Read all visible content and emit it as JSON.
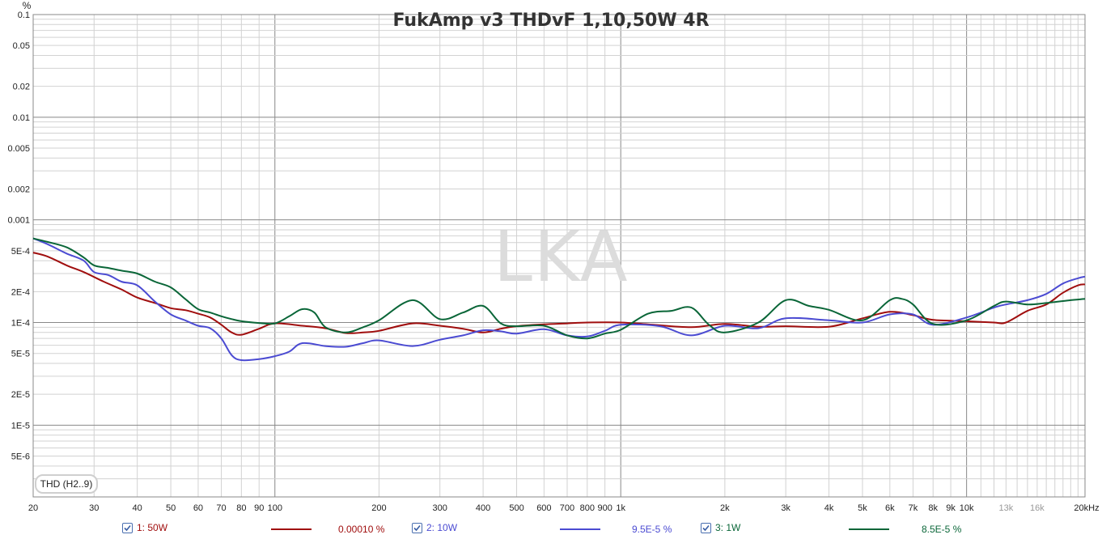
{
  "chart_data": {
    "type": "line",
    "title": "FukAmp v3 THDvF 1,10,50W 4R",
    "watermark": "LKA",
    "ylabel": "%",
    "xunit": "kHz",
    "xscale": "log",
    "yscale": "log",
    "xlim": [
      20,
      22000
    ],
    "ylim": [
      2e-06,
      0.1
    ],
    "grid": true,
    "measurement": "THD (H2..9)",
    "y_ticks": [
      {
        "v": 0.1,
        "label": "0.1"
      },
      {
        "v": 0.05,
        "label": "0.05"
      },
      {
        "v": 0.02,
        "label": "0.02"
      },
      {
        "v": 0.01,
        "label": "0.01"
      },
      {
        "v": 0.005,
        "label": "0.005"
      },
      {
        "v": 0.002,
        "label": "0.002"
      },
      {
        "v": 0.001,
        "label": "0.001"
      },
      {
        "v": 0.0005,
        "label": "5E-4"
      },
      {
        "v": 0.0002,
        "label": "2E-4"
      },
      {
        "v": 0.0001,
        "label": "1E-4"
      },
      {
        "v": 5e-05,
        "label": "5E-5"
      },
      {
        "v": 2e-05,
        "label": "2E-5"
      },
      {
        "v": 1e-05,
        "label": "1E-5"
      },
      {
        "v": 5e-06,
        "label": "5E-6"
      }
    ],
    "x_ticks": [
      {
        "v": 20,
        "label": "20"
      },
      {
        "v": 30,
        "label": "30"
      },
      {
        "v": 40,
        "label": "40"
      },
      {
        "v": 50,
        "label": "50"
      },
      {
        "v": 60,
        "label": "60"
      },
      {
        "v": 70,
        "label": "70"
      },
      {
        "v": 80,
        "label": "80"
      },
      {
        "v": 90,
        "label": "90"
      },
      {
        "v": 100,
        "label": "100"
      },
      {
        "v": 200,
        "label": "200"
      },
      {
        "v": 300,
        "label": "300"
      },
      {
        "v": 400,
        "label": "400"
      },
      {
        "v": 500,
        "label": "500"
      },
      {
        "v": 600,
        "label": "600"
      },
      {
        "v": 700,
        "label": "700"
      },
      {
        "v": 800,
        "label": "800"
      },
      {
        "v": 900,
        "label": "900"
      },
      {
        "v": 1000,
        "label": "1k"
      },
      {
        "v": 2000,
        "label": "2k"
      },
      {
        "v": 3000,
        "label": "3k"
      },
      {
        "v": 4000,
        "label": "4k"
      },
      {
        "v": 5000,
        "label": "5k"
      },
      {
        "v": 6000,
        "label": "6k"
      },
      {
        "v": 7000,
        "label": "7k"
      },
      {
        "v": 8000,
        "label": "8k"
      },
      {
        "v": 9000,
        "label": "9k"
      },
      {
        "v": 10000,
        "label": "10k"
      },
      {
        "v": 13000,
        "label": "13k",
        "muted": true
      },
      {
        "v": 16000,
        "label": "16k",
        "muted": true
      },
      {
        "v": 20000,
        "label": "20kHz"
      }
    ],
    "x_minor": [
      11000,
      12000,
      14000,
      15000,
      17000,
      18000,
      19000,
      21000,
      22000
    ],
    "series": [
      {
        "name": "1: 50W",
        "value_label": "0.00010 %",
        "color": "#a00e0e",
        "points": [
          [
            20,
            0.00048
          ],
          [
            22,
            0.00044
          ],
          [
            25,
            0.00036
          ],
          [
            28,
            0.00031
          ],
          [
            32,
            0.00025
          ],
          [
            36,
            0.00021
          ],
          [
            40,
            0.000175
          ],
          [
            45,
            0.000155
          ],
          [
            50,
            0.000138
          ],
          [
            55,
            0.000132
          ],
          [
            60,
            0.000122
          ],
          [
            65,
            0.000112
          ],
          [
            70,
            9.5e-05
          ],
          [
            75,
            8e-05
          ],
          [
            80,
            7.6e-05
          ],
          [
            90,
            8.7e-05
          ],
          [
            100,
            9.8e-05
          ],
          [
            120,
            9.3e-05
          ],
          [
            140,
            8.8e-05
          ],
          [
            160,
            7.9e-05
          ],
          [
            180,
            8e-05
          ],
          [
            200,
            8.3e-05
          ],
          [
            250,
            9.8e-05
          ],
          [
            300,
            9.3e-05
          ],
          [
            350,
            8.7e-05
          ],
          [
            400,
            8e-05
          ],
          [
            450,
            8.7e-05
          ],
          [
            500,
            9.2e-05
          ],
          [
            600,
            9.6e-05
          ],
          [
            700,
            9.8e-05
          ],
          [
            800,
            0.0001
          ],
          [
            1000,
            0.0001
          ],
          [
            1200,
            9.6e-05
          ],
          [
            1600,
            9e-05
          ],
          [
            2000,
            9.7e-05
          ],
          [
            2500,
            9.1e-05
          ],
          [
            3000,
            9.2e-05
          ],
          [
            4000,
            9.1e-05
          ],
          [
            5000,
            0.00011
          ],
          [
            6000,
            0.000127
          ],
          [
            7000,
            0.000118
          ],
          [
            8000,
            0.000106
          ],
          [
            10000,
            0.000103
          ],
          [
            12000,
            0.0001
          ],
          [
            13000,
            0.0001
          ],
          [
            15000,
            0.00013
          ],
          [
            17000,
            0.00015
          ],
          [
            19000,
            0.000195
          ],
          [
            21000,
            0.00023
          ],
          [
            22000,
            0.000235
          ]
        ]
      },
      {
        "name": "2: 10W",
        "value_label": "9.5E-5 %",
        "color": "#4b4bd2",
        "points": [
          [
            20,
            0.00066
          ],
          [
            22,
            0.00058
          ],
          [
            25,
            0.00047
          ],
          [
            28,
            0.0004
          ],
          [
            30,
            0.00031
          ],
          [
            33,
            0.00029
          ],
          [
            36,
            0.00025
          ],
          [
            40,
            0.00023
          ],
          [
            45,
            0.00016
          ],
          [
            50,
            0.00012
          ],
          [
            55,
            0.000105
          ],
          [
            60,
            9.3e-05
          ],
          [
            65,
            8.8e-05
          ],
          [
            70,
            7e-05
          ],
          [
            75,
            4.8e-05
          ],
          [
            80,
            4.3e-05
          ],
          [
            90,
            4.4e-05
          ],
          [
            100,
            4.7e-05
          ],
          [
            110,
            5.2e-05
          ],
          [
            120,
            6.3e-05
          ],
          [
            140,
            5.9e-05
          ],
          [
            160,
            5.8e-05
          ],
          [
            180,
            6.3e-05
          ],
          [
            200,
            6.7e-05
          ],
          [
            250,
            5.9e-05
          ],
          [
            300,
            6.8e-05
          ],
          [
            350,
            7.5e-05
          ],
          [
            400,
            8.4e-05
          ],
          [
            450,
            8.2e-05
          ],
          [
            500,
            7.8e-05
          ],
          [
            600,
            8.6e-05
          ],
          [
            700,
            7.5e-05
          ],
          [
            800,
            7.3e-05
          ],
          [
            900,
            8.3e-05
          ],
          [
            1000,
            9.5e-05
          ],
          [
            1300,
            9.2e-05
          ],
          [
            1600,
            7.5e-05
          ],
          [
            2000,
            9.3e-05
          ],
          [
            2500,
            8.8e-05
          ],
          [
            3000,
            0.00011
          ],
          [
            4000,
            0.000105
          ],
          [
            5000,
            0.0001
          ],
          [
            6000,
            0.00012
          ],
          [
            7000,
            0.00012
          ],
          [
            8000,
            9.5e-05
          ],
          [
            10000,
            0.000112
          ],
          [
            12000,
            0.00014
          ],
          [
            13000,
            0.00015
          ],
          [
            15000,
            0.000165
          ],
          [
            17000,
            0.00019
          ],
          [
            19000,
            0.00024
          ],
          [
            21000,
            0.00027
          ],
          [
            22000,
            0.00028
          ]
        ]
      },
      {
        "name": "3: 1W",
        "value_label": "8.5E-5 %",
        "color": "#0a6638",
        "points": [
          [
            20,
            0.00066
          ],
          [
            22,
            0.00061
          ],
          [
            25,
            0.00054
          ],
          [
            28,
            0.00043
          ],
          [
            30,
            0.00036
          ],
          [
            33,
            0.00034
          ],
          [
            36,
            0.00032
          ],
          [
            40,
            0.0003
          ],
          [
            45,
            0.00025
          ],
          [
            50,
            0.00022
          ],
          [
            55,
            0.00017
          ],
          [
            60,
            0.000135
          ],
          [
            65,
            0.000125
          ],
          [
            70,
            0.000115
          ],
          [
            75,
            0.000108
          ],
          [
            80,
            0.000103
          ],
          [
            90,
            9.9e-05
          ],
          [
            100,
            9.8e-05
          ],
          [
            110,
            0.000115
          ],
          [
            120,
            0.000135
          ],
          [
            130,
            0.000125
          ],
          [
            140,
            9e-05
          ],
          [
            160,
            8e-05
          ],
          [
            180,
            9e-05
          ],
          [
            200,
            0.000105
          ],
          [
            250,
            0.000165
          ],
          [
            300,
            0.000108
          ],
          [
            350,
            0.000125
          ],
          [
            400,
            0.000145
          ],
          [
            450,
            9.8e-05
          ],
          [
            500,
            9.2e-05
          ],
          [
            600,
            9.3e-05
          ],
          [
            700,
            7.5e-05
          ],
          [
            800,
            7e-05
          ],
          [
            900,
            7.8e-05
          ],
          [
            1000,
            8.5e-05
          ],
          [
            1200,
            0.000122
          ],
          [
            1400,
            0.00013
          ],
          [
            1600,
            0.00014
          ],
          [
            1800,
            9.5e-05
          ],
          [
            2000,
            8e-05
          ],
          [
            2500,
            0.0001
          ],
          [
            3000,
            0.000165
          ],
          [
            3500,
            0.000145
          ],
          [
            4000,
            0.000133
          ],
          [
            5000,
            0.000105
          ],
          [
            6000,
            0.000165
          ],
          [
            6500,
            0.00017
          ],
          [
            7000,
            0.00015
          ],
          [
            8000,
            9.7e-05
          ],
          [
            10000,
            0.000105
          ],
          [
            12000,
            0.000145
          ],
          [
            13000,
            0.00016
          ],
          [
            15000,
            0.00015
          ],
          [
            17000,
            0.000155
          ],
          [
            20000,
            0.000165
          ],
          [
            22000,
            0.00017
          ]
        ]
      }
    ]
  }
}
